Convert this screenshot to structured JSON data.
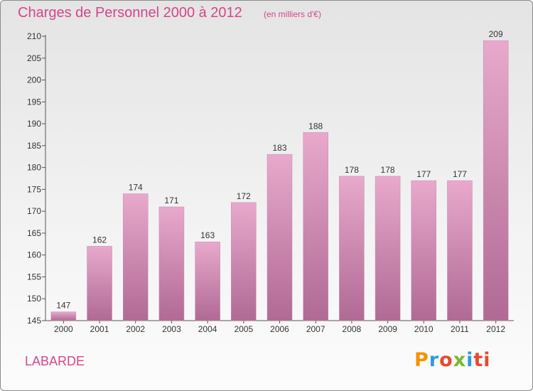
{
  "header": {
    "title": "Charges de Personnel 2000 à 2012",
    "subtitle": "(en milliers d'€)"
  },
  "footer": {
    "commune": "LABARDE",
    "logo": [
      "P",
      "r",
      "o",
      "x",
      "i",
      "ti"
    ]
  },
  "colors": {
    "accent": "#d6458c",
    "bar_top": "#e8a9cc",
    "bar_bottom": "#b06a94"
  },
  "chart_data": {
    "type": "bar",
    "categories": [
      "2000",
      "2001",
      "2002",
      "2003",
      "2004",
      "2005",
      "2006",
      "2007",
      "2008",
      "2009",
      "2010",
      "2011",
      "2012"
    ],
    "values": [
      147,
      162,
      174,
      171,
      163,
      172,
      183,
      188,
      178,
      178,
      177,
      177,
      209
    ],
    "ylim": [
      145,
      210
    ],
    "yticks": [
      145,
      150,
      155,
      160,
      165,
      170,
      175,
      180,
      185,
      190,
      195,
      200,
      205,
      210
    ],
    "grid": false
  }
}
